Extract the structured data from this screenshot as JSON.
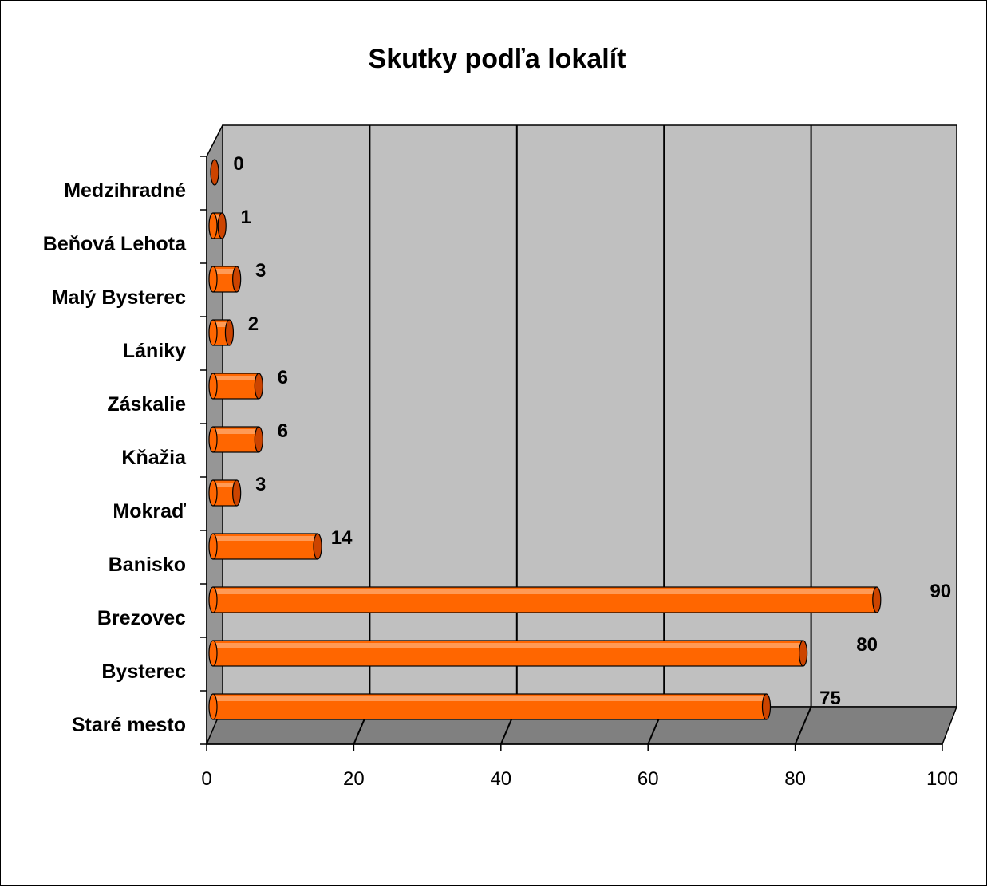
{
  "chart_data": {
    "type": "bar",
    "orientation": "horizontal",
    "style": "3d-cylinder",
    "title": "Skutky podľa lokalít",
    "xlabel": "",
    "ylabel": "",
    "categories": [
      "Medzihradné",
      "Beňová Lehota",
      "Malý Bysterec",
      "Lániky",
      "Záskalie",
      "Kňažia",
      "Mokraď",
      "Banisko",
      "Brezovec",
      "Bysterec",
      "Staré mesto"
    ],
    "series": [
      {
        "values": [
          0,
          1,
          3,
          2,
          6,
          6,
          3,
          14,
          90,
          80,
          75
        ]
      }
    ],
    "data_labels": [
      "0",
      "1",
      "3",
      "2",
      "6",
      "6",
      "3",
      "14",
      "90",
      "80",
      "75"
    ],
    "xlim": [
      0,
      100
    ],
    "ticks": [
      0,
      20,
      40,
      60,
      80,
      100
    ],
    "tick_labels": [
      "0",
      "20",
      "40",
      "60",
      "80",
      "100"
    ],
    "grid": true,
    "legend": "none",
    "colors": {
      "bar": "#ff6600",
      "bar_end": "#cc4400",
      "wall": "#c0c0c0",
      "floor": "#808080",
      "side_wall": "#969696"
    }
  }
}
